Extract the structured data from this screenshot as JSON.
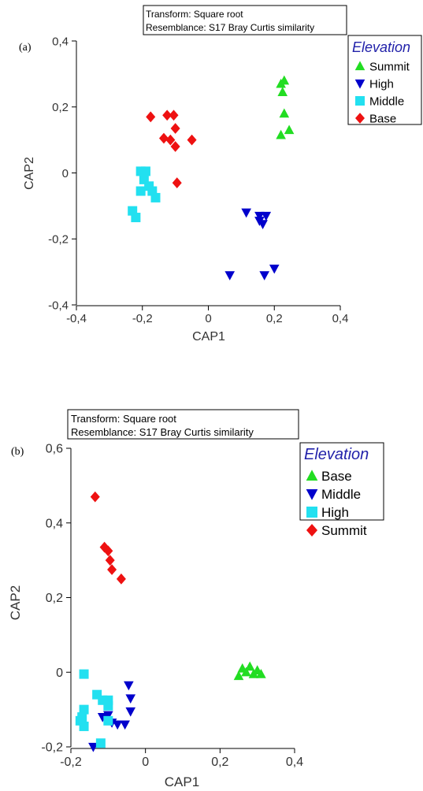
{
  "chart_data": [
    {
      "type": "scatter",
      "panel_label": "(a)",
      "transform_line": "Transform: Square root",
      "resemblance_line": "Resemblance: S17 Bray Curtis similarity",
      "xlabel": "CAP1",
      "ylabel": "CAP2",
      "xlim": [
        -0.4,
        0.4
      ],
      "ylim": [
        -0.4,
        0.4
      ],
      "xticks": [
        -0.4,
        -0.2,
        0,
        0.2,
        0.4
      ],
      "yticks": [
        -0.4,
        -0.2,
        0,
        0.2,
        0.4
      ],
      "xtick_labels": [
        "-0,4",
        "-0,2",
        "0",
        "0,2",
        "0,4"
      ],
      "ytick_labels": [
        "-0,4",
        "-0,2",
        "0",
        "0,2",
        "0,4"
      ],
      "grid": false,
      "legend_title": "Elevation",
      "legend_position": "top-right",
      "series": [
        {
          "name": "Summit",
          "marker": "triangle-up",
          "color": "#22dd22",
          "points": [
            [
              0.22,
              0.27
            ],
            [
              0.23,
              0.28
            ],
            [
              0.225,
              0.245
            ],
            [
              0.23,
              0.18
            ],
            [
              0.245,
              0.13
            ],
            [
              0.22,
              0.115
            ]
          ]
        },
        {
          "name": "High",
          "marker": "triangle-down",
          "color": "#0000cc",
          "points": [
            [
              0.115,
              -0.12
            ],
            [
              0.155,
              -0.13
            ],
            [
              0.175,
              -0.13
            ],
            [
              0.155,
              -0.145
            ],
            [
              0.165,
              -0.155
            ],
            [
              0.065,
              -0.31
            ],
            [
              0.17,
              -0.31
            ],
            [
              0.2,
              -0.29
            ]
          ]
        },
        {
          "name": "Middle",
          "marker": "square",
          "color": "#22e0f0",
          "points": [
            [
              -0.205,
              0.005
            ],
            [
              -0.19,
              0.005
            ],
            [
              -0.195,
              -0.02
            ],
            [
              -0.18,
              -0.04
            ],
            [
              -0.205,
              -0.055
            ],
            [
              -0.17,
              -0.055
            ],
            [
              -0.16,
              -0.075
            ],
            [
              -0.23,
              -0.115
            ],
            [
              -0.22,
              -0.135
            ]
          ]
        },
        {
          "name": "Base",
          "marker": "diamond",
          "color": "#ee1111",
          "points": [
            [
              -0.175,
              0.17
            ],
            [
              -0.125,
              0.175
            ],
            [
              -0.105,
              0.175
            ],
            [
              -0.1,
              0.135
            ],
            [
              -0.135,
              0.105
            ],
            [
              -0.115,
              0.1
            ],
            [
              -0.1,
              0.08
            ],
            [
              -0.05,
              0.1
            ],
            [
              -0.095,
              -0.03
            ]
          ]
        }
      ]
    },
    {
      "type": "scatter",
      "panel_label": "(b)",
      "transform_line": "Transform: Square root",
      "resemblance_line": "Resemblance: S17 Bray Curtis similarity",
      "xlabel": "CAP1",
      "ylabel": "CAP2",
      "xlim": [
        -0.2,
        0.4
      ],
      "ylim": [
        -0.2,
        0.6
      ],
      "xticks": [
        -0.2,
        0,
        0.2,
        0.4
      ],
      "yticks": [
        -0.2,
        0,
        0.2,
        0.4,
        0.6
      ],
      "xtick_labels": [
        "-0,2",
        "0",
        "0,2",
        "0,4"
      ],
      "ytick_labels": [
        "-0,2",
        "0",
        "0,2",
        "0,4",
        "0,6"
      ],
      "grid": false,
      "legend_title": "Elevation",
      "legend_position": "top-right",
      "series": [
        {
          "name": "Base",
          "marker": "triangle-up",
          "color": "#22dd22",
          "points": [
            [
              0.25,
              -0.01
            ],
            [
              0.26,
              0.01
            ],
            [
              0.27,
              0.0
            ],
            [
              0.28,
              0.015
            ],
            [
              0.29,
              -0.005
            ],
            [
              0.3,
              0.005
            ],
            [
              0.31,
              -0.005
            ]
          ]
        },
        {
          "name": "Middle",
          "marker": "triangle-down",
          "color": "#0000cc",
          "points": [
            [
              -0.045,
              -0.035
            ],
            [
              -0.04,
              -0.07
            ],
            [
              -0.04,
              -0.105
            ],
            [
              -0.055,
              -0.14
            ],
            [
              -0.075,
              -0.14
            ],
            [
              -0.1,
              -0.115
            ],
            [
              -0.09,
              -0.135
            ],
            [
              -0.115,
              -0.12
            ],
            [
              -0.14,
              -0.2
            ]
          ]
        },
        {
          "name": "High",
          "marker": "square",
          "color": "#22e0f0",
          "points": [
            [
              -0.165,
              -0.005
            ],
            [
              -0.13,
              -0.06
            ],
            [
              -0.115,
              -0.075
            ],
            [
              -0.1,
              -0.075
            ],
            [
              -0.1,
              -0.09
            ],
            [
              -0.165,
              -0.1
            ],
            [
              -0.17,
              -0.12
            ],
            [
              -0.175,
              -0.13
            ],
            [
              -0.165,
              -0.145
            ],
            [
              -0.12,
              -0.19
            ],
            [
              -0.1,
              -0.13
            ]
          ]
        },
        {
          "name": "Summit",
          "marker": "diamond",
          "color": "#ee1111",
          "points": [
            [
              -0.135,
              0.47
            ],
            [
              -0.11,
              0.335
            ],
            [
              -0.1,
              0.325
            ],
            [
              -0.095,
              0.3
            ],
            [
              -0.09,
              0.275
            ],
            [
              -0.065,
              0.25
            ]
          ]
        }
      ]
    }
  ]
}
